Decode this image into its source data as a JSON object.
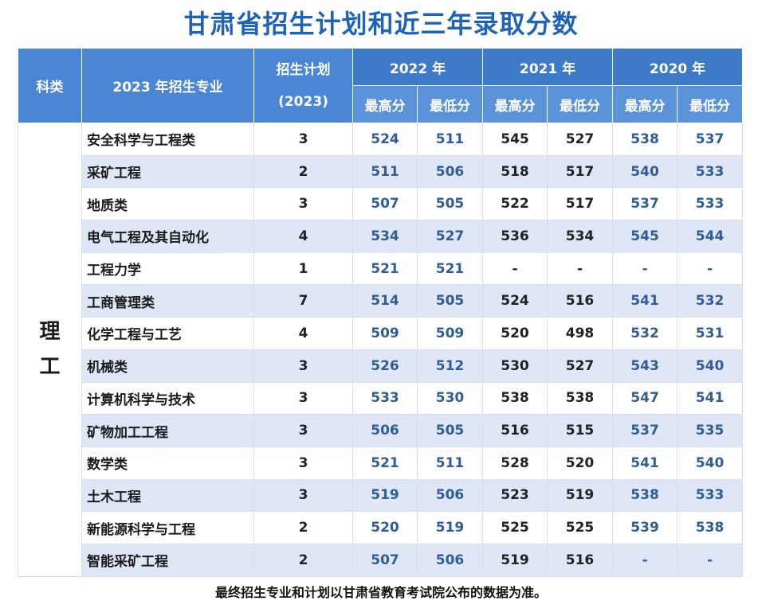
{
  "title": "甘肃省招生计划和近三年录取分数",
  "header": {
    "category": "科类",
    "major": "2023 年招生专业",
    "plan_line1": "招生计划",
    "plan_line2": "(2023)",
    "years": [
      "2022 年",
      "2021 年",
      "2020 年"
    ],
    "max_label": "最高分",
    "min_label": "最低分"
  },
  "category_value": "理工",
  "rows": [
    {
      "major": "安全科学与工程类",
      "plan": "3",
      "y2022_max": "524",
      "y2022_min": "511",
      "y2021_max": "545",
      "y2021_min": "527",
      "y2020_max": "538",
      "y2020_min": "537"
    },
    {
      "major": "采矿工程",
      "plan": "2",
      "y2022_max": "511",
      "y2022_min": "506",
      "y2021_max": "518",
      "y2021_min": "517",
      "y2020_max": "540",
      "y2020_min": "533"
    },
    {
      "major": "地质类",
      "plan": "3",
      "y2022_max": "507",
      "y2022_min": "505",
      "y2021_max": "522",
      "y2021_min": "517",
      "y2020_max": "537",
      "y2020_min": "533"
    },
    {
      "major": "电气工程及其自动化",
      "plan": "4",
      "y2022_max": "534",
      "y2022_min": "527",
      "y2021_max": "536",
      "y2021_min": "534",
      "y2020_max": "545",
      "y2020_min": "544"
    },
    {
      "major": "工程力学",
      "plan": "1",
      "y2022_max": "521",
      "y2022_min": "521",
      "y2021_max": "-",
      "y2021_min": "-",
      "y2020_max": "-",
      "y2020_min": "-"
    },
    {
      "major": "工商管理类",
      "plan": "7",
      "y2022_max": "514",
      "y2022_min": "505",
      "y2021_max": "524",
      "y2021_min": "516",
      "y2020_max": "541",
      "y2020_min": "532"
    },
    {
      "major": "化学工程与工艺",
      "plan": "4",
      "y2022_max": "509",
      "y2022_min": "509",
      "y2021_max": "520",
      "y2021_min": "498",
      "y2020_max": "532",
      "y2020_min": "531"
    },
    {
      "major": "机械类",
      "plan": "3",
      "y2022_max": "526",
      "y2022_min": "512",
      "y2021_max": "530",
      "y2021_min": "527",
      "y2020_max": "543",
      "y2020_min": "540"
    },
    {
      "major": "计算机科学与技术",
      "plan": "3",
      "y2022_max": "533",
      "y2022_min": "530",
      "y2021_max": "538",
      "y2021_min": "538",
      "y2020_max": "547",
      "y2020_min": "541"
    },
    {
      "major": "矿物加工工程",
      "plan": "3",
      "y2022_max": "506",
      "y2022_min": "505",
      "y2021_max": "516",
      "y2021_min": "515",
      "y2020_max": "537",
      "y2020_min": "535"
    },
    {
      "major": "数学类",
      "plan": "3",
      "y2022_max": "521",
      "y2022_min": "511",
      "y2021_max": "528",
      "y2021_min": "520",
      "y2020_max": "541",
      "y2020_min": "540"
    },
    {
      "major": "土木工程",
      "plan": "3",
      "y2022_max": "519",
      "y2022_min": "506",
      "y2021_max": "523",
      "y2021_min": "519",
      "y2020_max": "538",
      "y2020_min": "533"
    },
    {
      "major": "新能源科学与工程",
      "plan": "2",
      "y2022_max": "520",
      "y2022_min": "519",
      "y2021_max": "525",
      "y2021_min": "525",
      "y2020_max": "539",
      "y2020_min": "538"
    },
    {
      "major": "智能采矿工程",
      "plan": "2",
      "y2022_max": "507",
      "y2022_min": "506",
      "y2021_max": "519",
      "y2021_min": "516",
      "y2020_max": "-",
      "y2020_min": "-"
    }
  ],
  "footer": "最终招生专业和计划以甘肃省教育考试院公布的数据为准。"
}
